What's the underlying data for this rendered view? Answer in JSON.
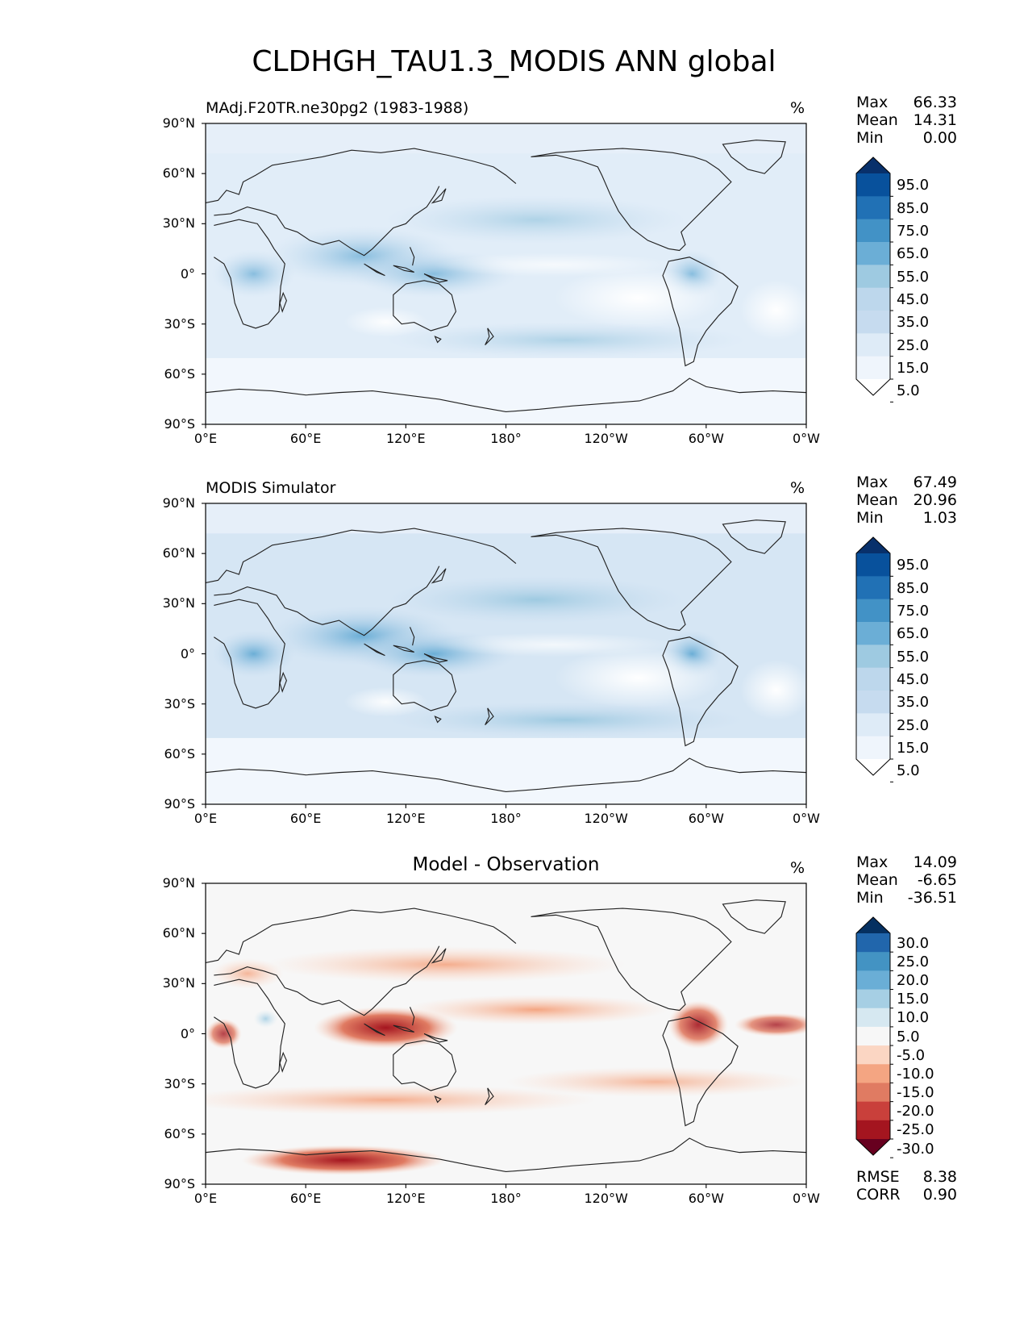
{
  "title": "CLDHGH_TAU1.3_MODIS ANN global",
  "x_ticks": [
    "0°E",
    "60°E",
    "120°E",
    "180°",
    "120°W",
    "60°W",
    "0°W"
  ],
  "y_ticks": [
    "90°N",
    "60°N",
    "30°N",
    "0°",
    "30°S",
    "60°S",
    "90°S"
  ],
  "panels": [
    {
      "title": "MAdj.F20TR.ne30pg2 (1983-1988)",
      "units": "%",
      "stats": [
        {
          "label": "Max",
          "value": "66.33"
        },
        {
          "label": "Mean",
          "value": "14.31"
        },
        {
          "label": "Min",
          "value": "0.00"
        }
      ],
      "colorbar_levels": [
        "95.0",
        "85.0",
        "75.0",
        "65.0",
        "55.0",
        "45.0",
        "35.0",
        "25.0",
        "15.0",
        "5.0"
      ],
      "colorbar_colors": [
        "#08306b",
        "#08519c",
        "#2171b5",
        "#4292c6",
        "#6baed6",
        "#9ecae1",
        "#bdd7ec",
        "#c6dbef",
        "#deebf7",
        "#eff5fc",
        "#ffffff"
      ]
    },
    {
      "title": "MODIS Simulator",
      "units": "%",
      "stats": [
        {
          "label": "Max",
          "value": "67.49"
        },
        {
          "label": "Mean",
          "value": "20.96"
        },
        {
          "label": "Min",
          "value": "1.03"
        }
      ],
      "colorbar_levels": [
        "95.0",
        "85.0",
        "75.0",
        "65.0",
        "55.0",
        "45.0",
        "35.0",
        "25.0",
        "15.0",
        "5.0"
      ],
      "colorbar_colors": [
        "#08306b",
        "#08519c",
        "#2171b5",
        "#4292c6",
        "#6baed6",
        "#9ecae1",
        "#bdd7ec",
        "#c6dbef",
        "#deebf7",
        "#eff5fc",
        "#ffffff"
      ]
    },
    {
      "title": "Model - Observation",
      "units": "%",
      "stats": [
        {
          "label": "Max",
          "value": "14.09"
        },
        {
          "label": "Mean",
          "value": "-6.65"
        },
        {
          "label": "Min",
          "value": "-36.51"
        }
      ],
      "colorbar_levels": [
        "30.0",
        "25.0",
        "20.0",
        "15.0",
        "10.0",
        "5.0",
        "-5.0",
        "-10.0",
        "-15.0",
        "-20.0",
        "-25.0",
        "-30.0"
      ],
      "colorbar_colors": [
        "#053061",
        "#2166ac",
        "#4393c3",
        "#6aaed6",
        "#a6cfe4",
        "#d6e8f1",
        "#f7f7f7",
        "#fbd6c3",
        "#f4a582",
        "#e07b62",
        "#c9403b",
        "#a4151f",
        "#67001f"
      ],
      "metrics": [
        {
          "label": "RMSE",
          "value": "8.38"
        },
        {
          "label": "CORR",
          "value": "0.90"
        }
      ]
    }
  ]
}
